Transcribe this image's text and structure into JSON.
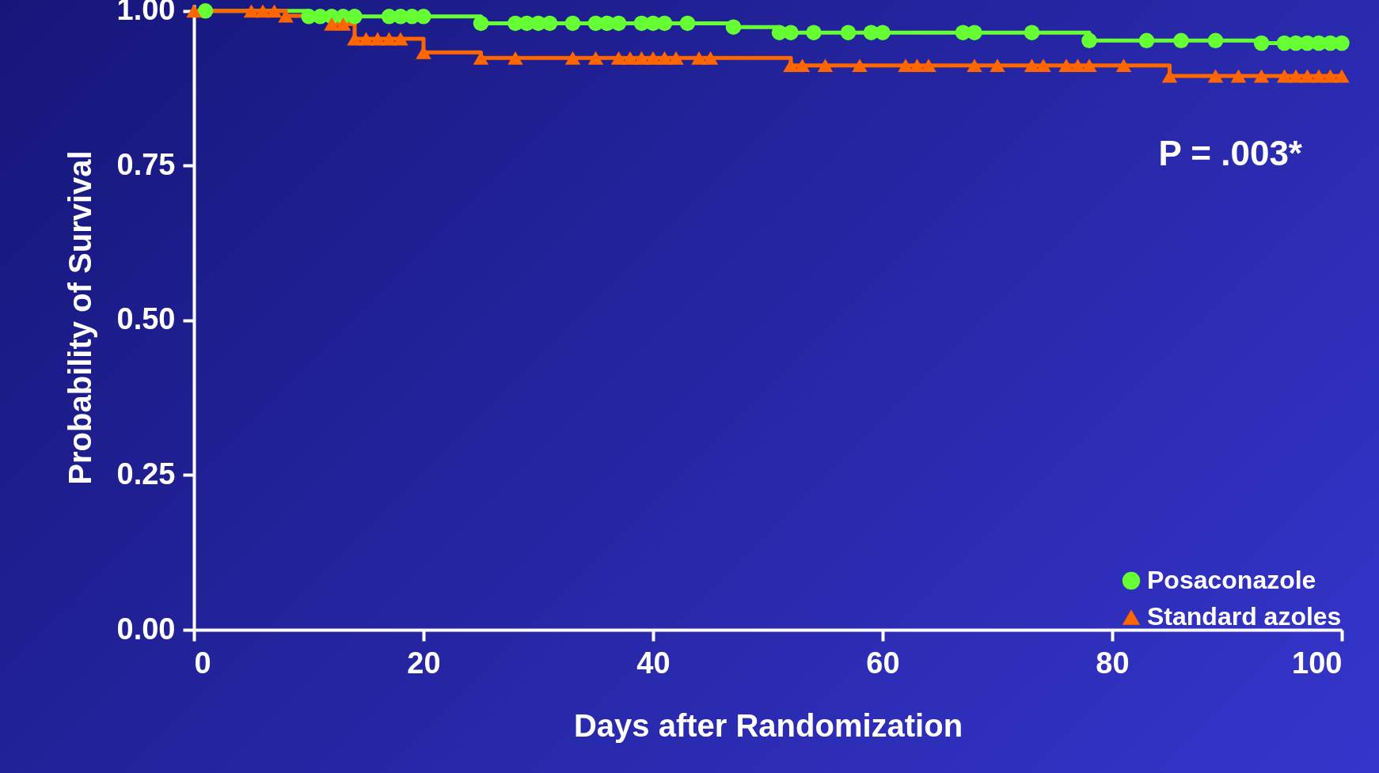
{
  "chart_data": {
    "type": "step",
    "xlabel": "Days after Randomization",
    "ylabel": "Probability of Survival",
    "annotations": [
      "P = .003*"
    ],
    "xlim": [
      0,
      100
    ],
    "xticks": [
      0,
      20,
      40,
      60,
      80,
      100
    ],
    "ylim": [
      0,
      1.01
    ],
    "yticks": [
      {
        "value": 0,
        "label": "0.00"
      },
      {
        "value": 0.25,
        "label": "0.25"
      },
      {
        "value": 0.5,
        "label": "0.50"
      },
      {
        "value": 0.75,
        "label": "0.75"
      },
      {
        "value": 1,
        "label": "1.00"
      }
    ],
    "grid": false,
    "legend": "bottom right",
    "series": [
      {
        "name": "Posaconazole",
        "color": "#66ff33",
        "marker": "circle",
        "x": [
          1,
          10,
          11,
          12,
          13,
          14,
          17,
          18,
          19,
          20,
          25,
          28,
          29,
          30,
          31,
          33,
          35,
          36,
          37,
          39,
          40,
          41,
          43,
          47,
          51,
          52,
          54,
          57,
          59,
          60,
          67,
          68,
          73,
          78,
          83,
          86,
          89,
          93,
          95,
          96,
          97,
          98,
          99,
          100
        ],
        "values": [
          1,
          0.991,
          0.991,
          0.991,
          0.991,
          0.991,
          0.991,
          0.991,
          0.991,
          0.991,
          0.98,
          0.98,
          0.98,
          0.98,
          0.98,
          0.98,
          0.98,
          0.98,
          0.98,
          0.98,
          0.98,
          0.98,
          0.98,
          0.974,
          0.965,
          0.965,
          0.965,
          0.965,
          0.965,
          0.965,
          0.965,
          0.965,
          0.965,
          0.952,
          0.952,
          0.952,
          0.952,
          0.948,
          0.948,
          0.948,
          0.948,
          0.948,
          0.948,
          0.948
        ]
      },
      {
        "name": "Standard azoles",
        "color": "#ff6600",
        "marker": "triangle",
        "x": [
          0,
          5,
          6,
          7,
          8,
          12,
          13,
          14,
          15,
          16,
          17,
          18,
          20,
          25,
          28,
          33,
          35,
          37,
          38,
          39,
          40,
          41,
          42,
          44,
          45,
          52,
          53,
          55,
          58,
          62,
          63,
          64,
          68,
          70,
          73,
          74,
          76,
          77,
          78,
          81,
          85,
          89,
          91,
          93,
          95,
          96,
          97,
          98,
          99,
          100
        ],
        "values": [
          1,
          1,
          1,
          1,
          0.992,
          0.979,
          0.979,
          0.955,
          0.955,
          0.955,
          0.955,
          0.955,
          0.933,
          0.924,
          0.924,
          0.924,
          0.924,
          0.924,
          0.924,
          0.924,
          0.924,
          0.924,
          0.924,
          0.924,
          0.924,
          0.912,
          0.912,
          0.912,
          0.912,
          0.912,
          0.912,
          0.912,
          0.912,
          0.912,
          0.912,
          0.912,
          0.912,
          0.912,
          0.912,
          0.912,
          0.895,
          0.895,
          0.895,
          0.895,
          0.895,
          0.895,
          0.895,
          0.895,
          0.895,
          0.895
        ]
      }
    ]
  }
}
